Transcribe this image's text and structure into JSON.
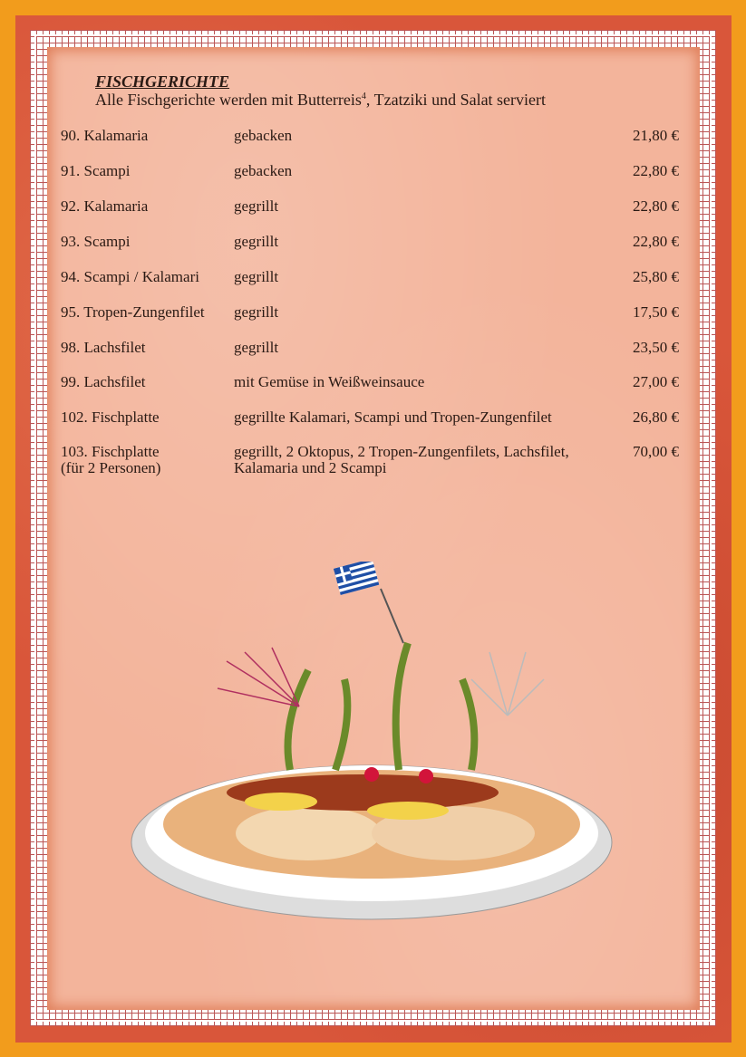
{
  "section": {
    "title": "FISCHGERICHTE",
    "subtitle_pre": "Alle Fischgerichte werden mit Butterreis",
    "subtitle_sup": "4",
    "subtitle_post": ", Tzatziki und Salat serviert"
  },
  "items": [
    {
      "name": "90. Kalamaria",
      "desc": "gebacken",
      "price": "21,80 €"
    },
    {
      "name": "91. Scampi",
      "desc": "gebacken",
      "price": "22,80 €"
    },
    {
      "name": "92. Kalamaria",
      "desc": "gegrillt",
      "price": "22,80 €"
    },
    {
      "name": "93. Scampi",
      "desc": "gegrillt",
      "price": "22,80 €"
    },
    {
      "name": "94. Scampi / Kalamari",
      "desc": "gegrillt",
      "price": "25,80 €"
    },
    {
      "name": "95. Tropen-Zungenfilet",
      "desc": "gegrillt",
      "price": "17,50 €"
    },
    {
      "name": "98. Lachsfilet",
      "desc": "gegrillt",
      "price": "23,50 €"
    },
    {
      "name": "99. Lachsfilet",
      "desc": "mit Gemüse in Weißweinsauce",
      "price": "27,00 €"
    },
    {
      "name": "102. Fischplatte",
      "desc": "gegrillte Kalamari, Scampi und Tropen-Zungenfilet",
      "price": "26,80 €"
    },
    {
      "name": "103. Fischplatte",
      "name2": "(für 2 Personen)",
      "desc": "gegrillt, 2 Oktopus, 2 Tropen-Zungenfilets, Lachsfilet,",
      "desc2": "Kalamaria und 2 Scampi",
      "price": "70,00 €"
    }
  ],
  "colors": {
    "background": "#f29c1c",
    "frame": "#d9563a",
    "paper": "#f3b49b"
  }
}
